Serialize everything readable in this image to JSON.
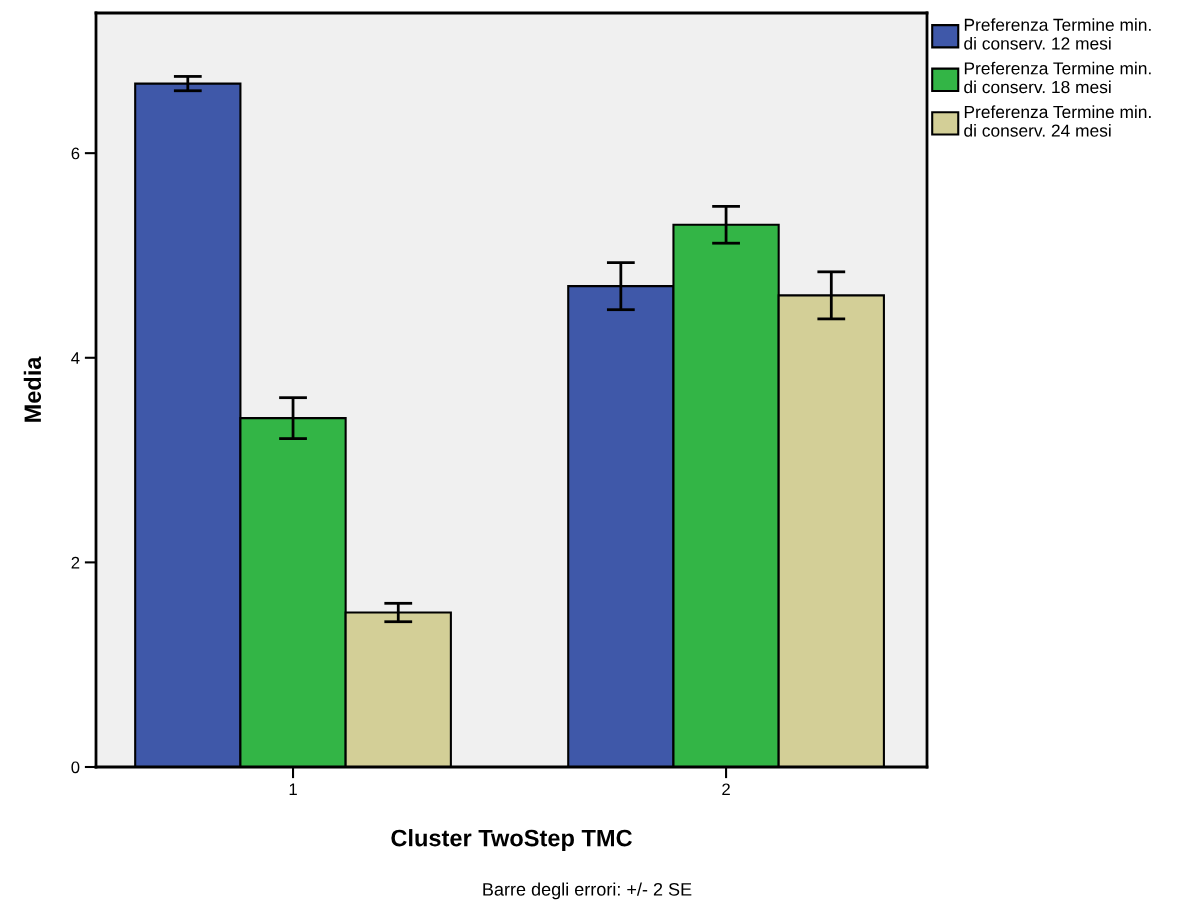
{
  "chart_data": {
    "type": "bar",
    "xlabel": "Cluster TwoStep TMC",
    "ylabel": "Media",
    "categories": [
      "1",
      "2"
    ],
    "series": [
      {
        "name": "Preferenza Termine min.\ndi conserv. 12 mesi",
        "color": "#3f58a9",
        "values": [
          6.68,
          4.7
        ],
        "errors": [
          0.07,
          0.23
        ]
      },
      {
        "name": "Preferenza Termine min.\ndi conserv. 18 mesi",
        "color": "#33b546",
        "values": [
          3.41,
          5.3
        ],
        "errors": [
          0.2,
          0.18
        ]
      },
      {
        "name": "Preferenza Termine min.\ndi conserv. 24 mesi",
        "color": "#d3cf97",
        "values": [
          1.51,
          4.61
        ],
        "errors": [
          0.09,
          0.23
        ]
      }
    ],
    "ylim": [
      0,
      7.37
    ],
    "yticks": [
      0,
      2,
      4,
      6
    ],
    "grid": false,
    "legend": "top right",
    "annotations": [
      "Barre degli errori: +/- 2 SE"
    ]
  }
}
